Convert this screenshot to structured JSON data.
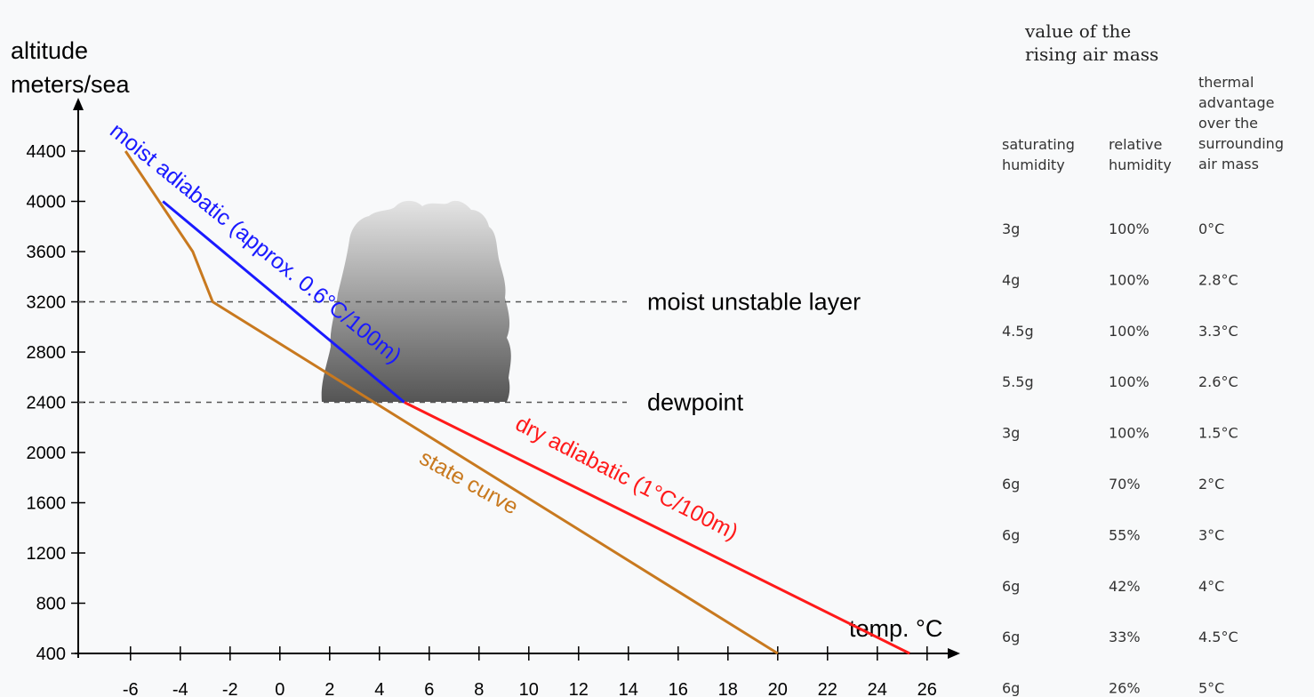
{
  "chart_data": {
    "type": "line",
    "ylabel": [
      "altitude",
      "meters/sea"
    ],
    "xlabel": "temp. °C",
    "xlim": [
      -8.1,
      27.4
    ],
    "ylim": [
      400,
      4800
    ],
    "xticks": [
      -6,
      -4,
      -2,
      0,
      2,
      4,
      6,
      8,
      10,
      12,
      14,
      16,
      18,
      20,
      22,
      24,
      26
    ],
    "yticks": [
      400,
      800,
      1200,
      1600,
      2000,
      2400,
      2800,
      3200,
      3600,
      4000,
      4400
    ],
    "series": [
      {
        "name": "state curve",
        "color": "#c8791f",
        "x": [
          -6.2,
          -3.5,
          -2.7,
          20
        ],
        "values": [
          4400,
          3600,
          3200,
          400
        ]
      },
      {
        "name": "moist adiabatic (approx. 0.6°C/100m)",
        "color": "#1a1aff",
        "x": [
          -4.7,
          5
        ],
        "values": [
          4000,
          2400
        ]
      },
      {
        "name": "dry adiabatic (1°C/100m)",
        "color": "#ff1a1a",
        "x": [
          5,
          25.3
        ],
        "values": [
          2400,
          400
        ]
      }
    ],
    "reference_lines": [
      {
        "label": "moist unstable layer",
        "y": 3200
      },
      {
        "label": "dewpoint",
        "y": 2400
      }
    ]
  },
  "table": {
    "group_header": [
      "value of the",
      "rising air mass"
    ],
    "columns": [
      [
        "saturating",
        "humidity"
      ],
      [
        "relative",
        "humidity"
      ],
      [
        "thermal",
        "advantage",
        "over the",
        "surrounding",
        "air mass"
      ]
    ],
    "rows": [
      [
        "3g",
        "100%",
        "0°C"
      ],
      [
        "4g",
        "100%",
        "2.8°C"
      ],
      [
        "4.5g",
        "100%",
        "3.3°C"
      ],
      [
        "5.5g",
        "100%",
        "2.6°C"
      ],
      [
        "3g",
        "100%",
        "1.5°C"
      ],
      [
        "6g",
        "70%",
        "2°C"
      ],
      [
        "6g",
        "55%",
        "3°C"
      ],
      [
        "6g",
        "42%",
        "4°C"
      ],
      [
        "6g",
        "33%",
        "4.5°C"
      ],
      [
        "6g",
        "26%",
        "5°C"
      ]
    ]
  }
}
